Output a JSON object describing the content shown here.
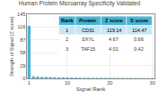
{
  "chart_data": {
    "type": "bar",
    "title": "Human Protein Microarray Specificity Validated",
    "xlabel": "Signal Rank",
    "ylabel": "Strength of Signal (Z score)",
    "x": [
      1,
      2,
      3,
      4,
      5,
      6,
      7,
      8,
      9,
      10,
      11,
      12,
      13,
      14,
      15,
      16,
      17,
      18,
      19,
      20,
      21,
      22,
      23,
      24,
      25,
      26,
      27,
      28,
      29,
      30
    ],
    "values": [
      119.14,
      4.67,
      4.01,
      3.5,
      3.2,
      2.9,
      2.6,
      2.4,
      2.2,
      2.0,
      1.9,
      1.8,
      1.7,
      1.6,
      1.5,
      1.4,
      1.35,
      1.3,
      1.25,
      1.2,
      1.15,
      1.1,
      1.05,
      1.0,
      0.95,
      0.9,
      0.85,
      0.8,
      0.75,
      0.7
    ],
    "color": "#4ab3d4",
    "xlim": [
      0.5,
      30.5
    ],
    "ylim": [
      0,
      145
    ],
    "xticks": [
      1,
      10,
      20,
      30
    ],
    "yticks": [
      0,
      29,
      58,
      87,
      116,
      145
    ],
    "grid": true,
    "table": [
      [
        "Rank",
        "Protein",
        "Z score",
        "S score"
      ],
      [
        "1",
        "CD31",
        "119.14",
        "114.47"
      ],
      [
        "2",
        "SXYL",
        "4.67",
        "0.66"
      ],
      [
        "3",
        "TAF15",
        "4.01",
        "0.42"
      ]
    ]
  }
}
